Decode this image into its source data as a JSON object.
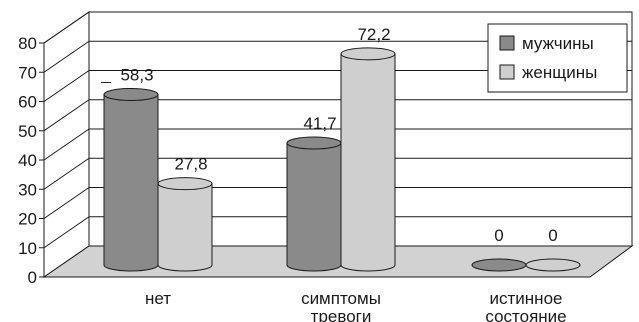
{
  "chart_data": {
    "type": "bar",
    "style": "3d-cylinder",
    "categories": [
      [
        "нет"
      ],
      [
        "симптомы",
        "тревоги"
      ],
      [
        "истинное",
        "состояние"
      ]
    ],
    "series": [
      {
        "name": "мужчины",
        "values": [
          58.3,
          41.7,
          0
        ],
        "labels": [
          "58,3",
          "41,7",
          "0"
        ],
        "color": "#8a8a8a"
      },
      {
        "name": "женщины",
        "values": [
          27.8,
          72.2,
          0
        ],
        "labels": [
          "27,8",
          "72,2",
          "0"
        ],
        "color": "#cfcfcf"
      }
    ],
    "yticks": [
      "0",
      "10",
      "20",
      "30",
      "40",
      "50",
      "60",
      "70",
      "80"
    ],
    "ylim": [
      0,
      80
    ],
    "grid": true,
    "legend_position": "top-right",
    "title": "",
    "xlabel": "",
    "ylabel": ""
  }
}
